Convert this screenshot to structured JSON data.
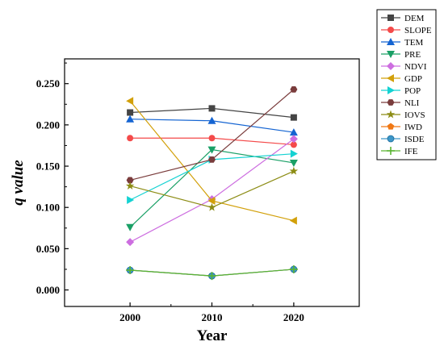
{
  "chart_data": {
    "type": "line",
    "x": [
      2000,
      2010,
      2020
    ],
    "xlabel": "Year",
    "ylabel": "q value",
    "ylim": [
      -0.02,
      0.28
    ],
    "yticks": [
      "0.000",
      "0.050",
      "0.100",
      "0.150",
      "0.200",
      "0.250"
    ],
    "xticks": [
      "2000",
      "2010",
      "2020"
    ],
    "legend_position": "top-right",
    "grid": false,
    "series": [
      {
        "name": "DEM",
        "color": "#444444",
        "marker": "square",
        "values": [
          0.215,
          0.22,
          0.209
        ]
      },
      {
        "name": "SLOPE",
        "color": "#f44a4a",
        "marker": "circle",
        "values": [
          0.184,
          0.184,
          0.176
        ]
      },
      {
        "name": "TEM",
        "color": "#1464d2",
        "marker": "triangle-up",
        "values": [
          0.207,
          0.205,
          0.191
        ]
      },
      {
        "name": "PRE",
        "color": "#1aa066",
        "marker": "triangle-down",
        "values": [
          0.076,
          0.17,
          0.154
        ]
      },
      {
        "name": "NDVI",
        "color": "#cd6ee0",
        "marker": "diamond",
        "values": [
          0.058,
          0.11,
          0.183
        ]
      },
      {
        "name": "GDP",
        "color": "#d2a00a",
        "marker": "triangle-left",
        "values": [
          0.229,
          0.108,
          0.084
        ]
      },
      {
        "name": "POP",
        "color": "#14d2d2",
        "marker": "triangle-right",
        "values": [
          0.109,
          0.158,
          0.165
        ]
      },
      {
        "name": "NLI",
        "color": "#7a3c3c",
        "marker": "hexagon",
        "values": [
          0.133,
          0.158,
          0.243
        ]
      },
      {
        "name": "IOVS",
        "color": "#8c8c14",
        "marker": "star",
        "values": [
          0.126,
          0.1,
          0.144
        ]
      },
      {
        "name": "IWD",
        "color": "#f07814",
        "marker": "pentagon",
        "values": [
          0.024,
          0.017,
          0.025
        ]
      },
      {
        "name": "ISDE",
        "color": "#3c96c8",
        "marker": "sphere",
        "values": [
          0.024,
          0.017,
          0.025
        ]
      },
      {
        "name": "IFE",
        "color": "#5ab432",
        "marker": "plus",
        "values": [
          0.024,
          0.017,
          0.025
        ]
      }
    ]
  }
}
